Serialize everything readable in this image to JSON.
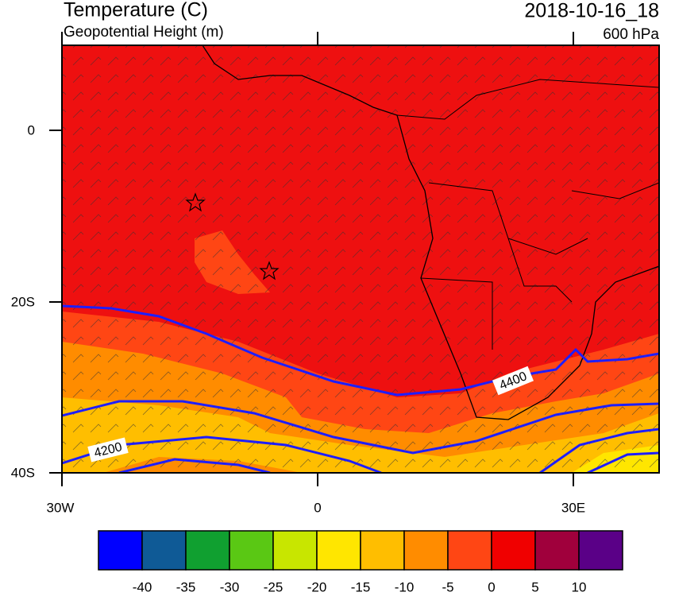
{
  "header": {
    "title": "Temperature (C)",
    "subtitle": "Geopotential Height (m)",
    "time": "2018-10-16_18",
    "level": "600 hPa"
  },
  "axes": {
    "lat_labels": [
      "0",
      "20S",
      "40S"
    ],
    "lon_labels": [
      "30W",
      "0",
      "30E"
    ]
  },
  "contour_labels": [
    "4400",
    "4200"
  ],
  "colorbar": {
    "colors": [
      "#0000ff",
      "#0f5a96",
      "#10a030",
      "#5ac814",
      "#c8e600",
      "#ffe600",
      "#ffbe00",
      "#ff8c00",
      "#ff4614",
      "#f00000",
      "#a0003c",
      "#5a0087"
    ],
    "labels": [
      "-40",
      "-35",
      "-30",
      "-25",
      "-20",
      "-15",
      "-10",
      "-5",
      "0",
      "5",
      "10"
    ]
  }
}
